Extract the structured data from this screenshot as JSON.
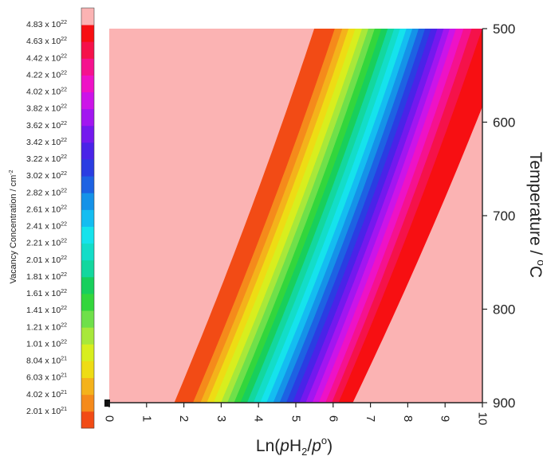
{
  "chart_data": {
    "type": "heatmap",
    "xlabel_parts": [
      "Ln(",
      "p",
      "H",
      "2",
      "/",
      "p",
      "o",
      ")"
    ],
    "ylabel_parts": [
      "Temperature / ",
      "o",
      "C"
    ],
    "colorbar_label_parts": [
      "Vacancy Concentration / cm",
      "-2"
    ],
    "x_range": [
      0,
      10
    ],
    "x_ticks": [
      "0",
      "1",
      "2",
      "3",
      "4",
      "5",
      "6",
      "7",
      "8",
      "9",
      "10"
    ],
    "y_range": [
      500,
      900
    ],
    "y_axis_position": "right",
    "y_inverted": true,
    "y_ticks": [
      "500",
      "600",
      "700",
      "800",
      "900"
    ],
    "colorbar_position": "left",
    "levels": [
      {
        "mantissa": "2.01",
        "exp": "21",
        "color": "#F24B15"
      },
      {
        "mantissa": "4.02",
        "exp": "21",
        "color": "#F58A1B"
      },
      {
        "mantissa": "6.03",
        "exp": "21",
        "color": "#F4B21B"
      },
      {
        "mantissa": "8.04",
        "exp": "21",
        "color": "#EEDC14"
      },
      {
        "mantissa": "1.01",
        "exp": "22",
        "color": "#D8EE1E"
      },
      {
        "mantissa": "1.21",
        "exp": "22",
        "color": "#A8E83A"
      },
      {
        "mantissa": "1.41",
        "exp": "22",
        "color": "#6FE04A"
      },
      {
        "mantissa": "1.61",
        "exp": "22",
        "color": "#33D63C"
      },
      {
        "mantissa": "1.81",
        "exp": "22",
        "color": "#18CF5C"
      },
      {
        "mantissa": "2.01",
        "exp": "22",
        "color": "#13D79E"
      },
      {
        "mantissa": "2.21",
        "exp": "22",
        "color": "#13DDC8"
      },
      {
        "mantissa": "2.41",
        "exp": "22",
        "color": "#15E3EC"
      },
      {
        "mantissa": "2.61",
        "exp": "22",
        "color": "#14BDF1"
      },
      {
        "mantissa": "2.82",
        "exp": "22",
        "color": "#1592E8"
      },
      {
        "mantissa": "3.02",
        "exp": "22",
        "color": "#1D62E3"
      },
      {
        "mantissa": "3.22",
        "exp": "22",
        "color": "#2A3DE2"
      },
      {
        "mantissa": "3.42",
        "exp": "22",
        "color": "#4A23E8"
      },
      {
        "mantissa": "3.62",
        "exp": "22",
        "color": "#7419EE"
      },
      {
        "mantissa": "3.82",
        "exp": "22",
        "color": "#A216F0"
      },
      {
        "mantissa": "4.02",
        "exp": "22",
        "color": "#CC14E8"
      },
      {
        "mantissa": "4.22",
        "exp": "22",
        "color": "#EE12C6"
      },
      {
        "mantissa": "4.42",
        "exp": "22",
        "color": "#F5128E"
      },
      {
        "mantissa": "4.63",
        "exp": "22",
        "color": "#F5124A"
      },
      {
        "mantissa": "4.83",
        "exp": "22",
        "color": "#F70F12"
      }
    ],
    "upper_region_color": "#FBB3B3",
    "boundaries": [
      {
        "x500": 5.5,
        "x900": 1.75
      },
      {
        "x500": 6.05,
        "x900": 2.25
      },
      {
        "x500": 6.25,
        "x900": 2.45
      },
      {
        "x500": 6.42,
        "x900": 2.62
      },
      {
        "x500": 6.6,
        "x900": 2.8
      },
      {
        "x500": 6.78,
        "x900": 3.0
      },
      {
        "x500": 6.95,
        "x900": 3.17
      },
      {
        "x500": 7.12,
        "x900": 3.35
      },
      {
        "x500": 7.3,
        "x900": 3.52
      },
      {
        "x500": 7.47,
        "x900": 3.7
      },
      {
        "x500": 7.64,
        "x900": 3.87
      },
      {
        "x500": 7.8,
        "x900": 4.05
      },
      {
        "x500": 7.97,
        "x900": 4.22
      },
      {
        "x500": 8.13,
        "x900": 4.4
      },
      {
        "x500": 8.3,
        "x900": 4.57
      },
      {
        "x500": 8.47,
        "x900": 4.75
      },
      {
        "x500": 8.63,
        "x900": 4.92
      },
      {
        "x500": 8.8,
        "x900": 5.1
      },
      {
        "x500": 8.97,
        "x900": 5.27
      },
      {
        "x500": 9.13,
        "x900": 5.45
      },
      {
        "x500": 9.3,
        "x900": 5.62
      },
      {
        "x500": 9.5,
        "x900": 5.8
      },
      {
        "x500": 9.72,
        "x900": 5.97
      },
      {
        "x500": 10.0,
        "x900": 6.15
      },
      {
        "x500": 10.8,
        "x900": 6.52
      }
    ]
  }
}
